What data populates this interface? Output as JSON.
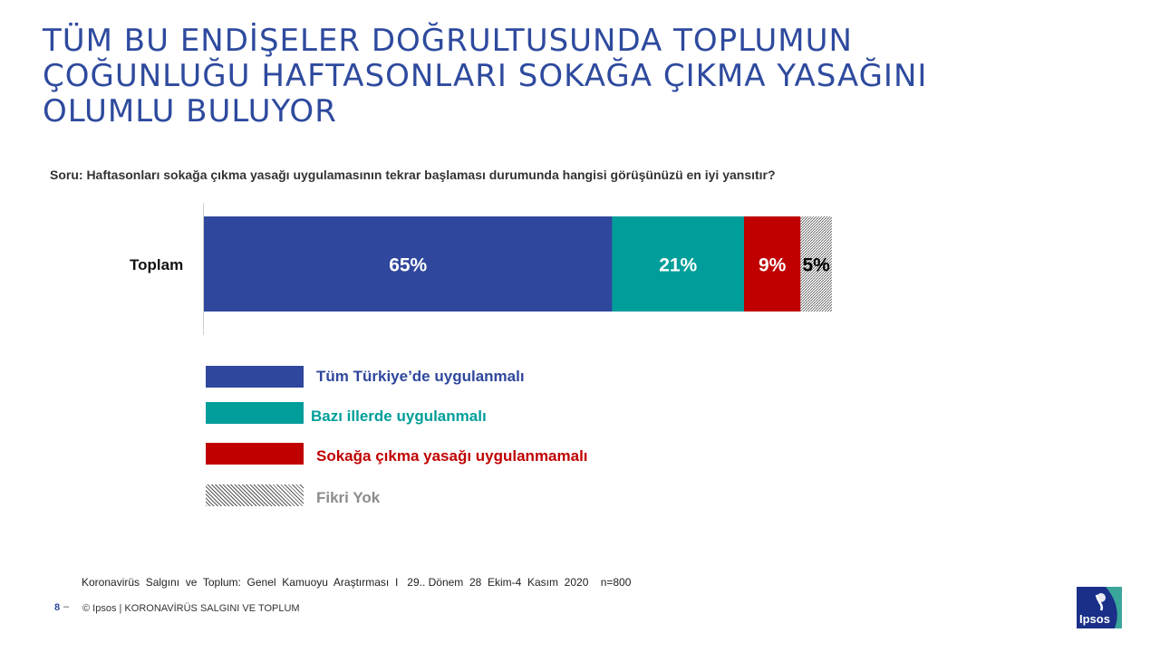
{
  "title_lines": [
    "TÜM BU ENDİŞELER DOĞRULTUSUNDA TOPLUMUN",
    "ÇOĞUNLUĞU HAFTASONLARI SOKAĞA ÇIKMA YASAĞINI",
    "OLUMLU BULUYOR"
  ],
  "question": "Soru: Haftasonları sokağa çıkma yasağı uygulamasının tekrar başlaması durumunda  hangisi görüşünüzü en iyi yansıtır?",
  "chart_data": {
    "type": "bar",
    "orientation": "horizontal",
    "stacked": true,
    "categories": [
      "Toplam"
    ],
    "series": [
      {
        "name": "Tüm Türkiye’de uygulanmalı",
        "values": [
          65
        ],
        "label": "65%",
        "color": "#2f479c"
      },
      {
        "name": "Bazı illerde uygulanmalı",
        "values": [
          21
        ],
        "label": "21%",
        "color": "#009e9a"
      },
      {
        "name": "Sokağa çıkma  yasağı uygulanmamalı",
        "values": [
          9
        ],
        "label": "9%",
        "color": "#c00000"
      },
      {
        "name": "Fikri Yok",
        "values": [
          5
        ],
        "label": "5%",
        "color": "hatch"
      }
    ],
    "xlim": [
      0,
      100
    ],
    "legend_position": "bottom-left",
    "grid": false
  },
  "legend_colors": [
    "#2f479c",
    "#009e9a",
    "#c00000",
    "#8c8c8c"
  ],
  "source": "Koronavirüs  Salgını  ve  Toplum:  Genel  Kamuoyu  Araştırması  I   29.. Dönem  28  Ekim-4  Kasım  2020    n=800",
  "footer": {
    "page_number": "8",
    "dash": "–",
    "text": "© Ipsos | KORONAVİRÜS SALGINI VE TOPLUM"
  },
  "logo": {
    "text": "Ipsos",
    "color": "#1a2f87",
    "accent": "#3aa59b"
  }
}
